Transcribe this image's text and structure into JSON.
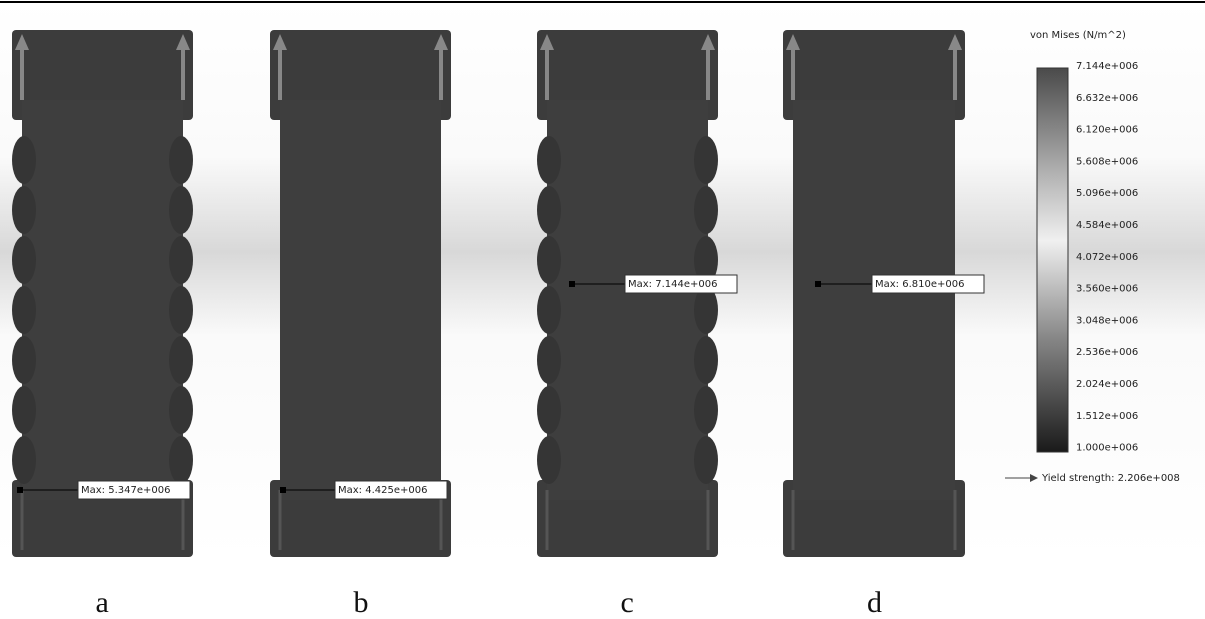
{
  "legend": {
    "title": "von Mises (N/m^2)",
    "ticks": [
      "7.144e+006",
      "6.632e+006",
      "6.120e+006",
      "5.608e+006",
      "5.096e+006",
      "4.584e+006",
      "4.072e+006",
      "3.560e+006",
      "3.048e+006",
      "2.536e+006",
      "2.024e+006",
      "1.512e+006",
      "1.000e+006"
    ],
    "yield_strength": "Yield strength: 2.206e+008"
  },
  "panels": [
    {
      "caption": "a",
      "max_label": "Max: 5.347e+006"
    },
    {
      "caption": "b",
      "max_label": "Max: 4.425e+006"
    },
    {
      "caption": "c",
      "max_label": "Max: 7.144e+006"
    },
    {
      "caption": "d",
      "max_label": "Max: 6.810e+006"
    }
  ]
}
